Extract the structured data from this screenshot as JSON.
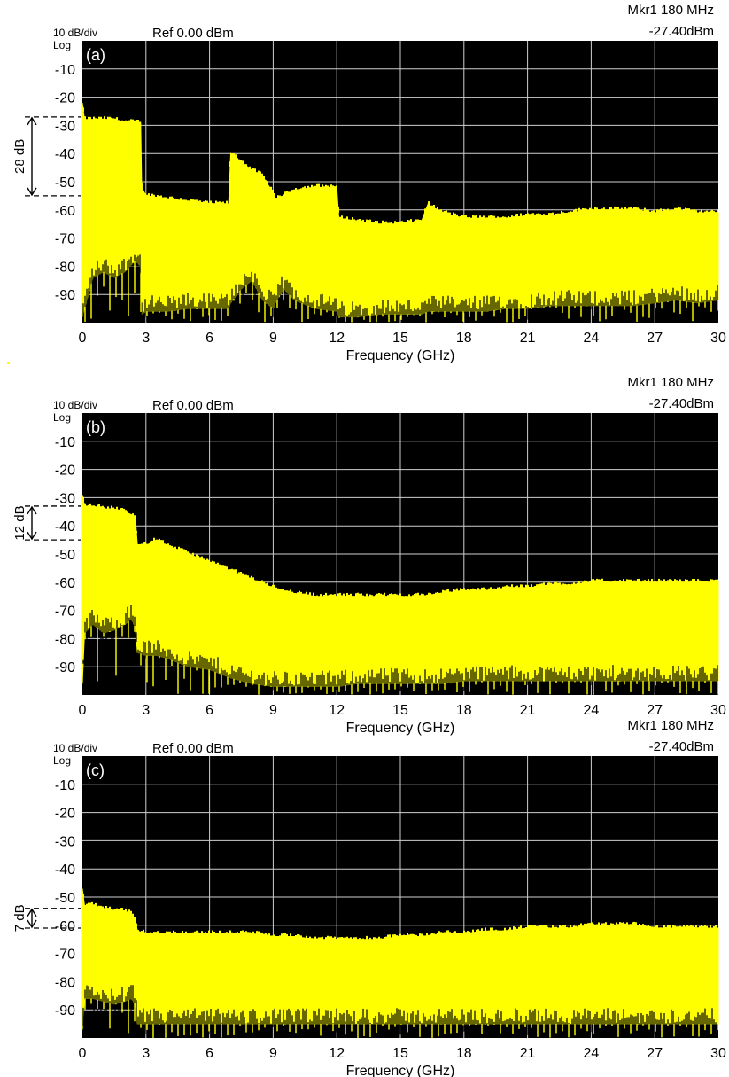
{
  "chart_data": [
    {
      "type": "area",
      "panel_label": "(a)",
      "scale_label": "10 dB/div",
      "log_label": "Log",
      "ref_label": "Ref 0.00 dBm",
      "marker_label": "Mkr1 180 MHz",
      "marker_value": "-27.40dBm",
      "xlabel": "Frequency (GHz)",
      "ylabel": "",
      "xlim": [
        0,
        30
      ],
      "ylim": [
        -100,
        0
      ],
      "x_ticks": [
        "0",
        "3",
        "6",
        "9",
        "12",
        "15",
        "18",
        "21",
        "24",
        "27",
        "30"
      ],
      "y_ticks": [
        "-10",
        "-20",
        "-30",
        "-40",
        "-50",
        "-60",
        "-70",
        "-80",
        "-90"
      ],
      "grid": true,
      "bracket": {
        "label": "28 dB",
        "top": -27,
        "bottom": -55
      },
      "series": [
        {
          "x": [
            0,
            0.1,
            0.5,
            1,
            1.5,
            2,
            2.5,
            2.75,
            2.8,
            3,
            4,
            5,
            6,
            6.9,
            7.0,
            7.5,
            8,
            8.5,
            9,
            9.1,
            9.5,
            10,
            11,
            12,
            12.1,
            13,
            14,
            15,
            16,
            16.3,
            16.5,
            17,
            18,
            19,
            20,
            21,
            22,
            23,
            24,
            25,
            26,
            27,
            28,
            29,
            30
          ],
          "upper": [
            -22,
            -28,
            -28,
            -28,
            -28,
            -29,
            -29,
            -29,
            -52,
            -55,
            -56,
            -57,
            -58,
            -58,
            -40,
            -43,
            -46,
            -48,
            -54,
            -56,
            -55,
            -53,
            -52,
            -52,
            -63,
            -64,
            -65,
            -65,
            -64,
            -58,
            -59,
            -61,
            -63,
            -63,
            -63,
            -62,
            -62,
            -61,
            -60,
            -60,
            -60,
            -61,
            -60,
            -61,
            -61
          ],
          "lower": [
            -98,
            -95,
            -84,
            -82,
            -84,
            -82,
            -78,
            -80,
            -97,
            -96,
            -96,
            -95,
            -95,
            -95,
            -93,
            -88,
            -85,
            -92,
            -95,
            -93,
            -88,
            -92,
            -95,
            -96,
            -98,
            -98,
            -97,
            -97,
            -97,
            -96,
            -96,
            -96,
            -96,
            -96,
            -95,
            -95,
            -94,
            -94,
            -94,
            -94,
            -94,
            -93,
            -92,
            -93,
            -92
          ]
        }
      ]
    },
    {
      "type": "area",
      "panel_label": "(b)",
      "scale_label": "10 dB/div",
      "log_label": "Log",
      "ref_label": "Ref 0.00 dBm",
      "marker_label": "Mkr1 180 MHz",
      "marker_value": "-27.40dBm",
      "xlabel": "Frequency (GHz)",
      "ylabel": "",
      "xlim": [
        0,
        30
      ],
      "ylim": [
        -100,
        0
      ],
      "x_ticks": [
        "0",
        "3",
        "6",
        "9",
        "12",
        "15",
        "18",
        "21",
        "24",
        "27",
        "30"
      ],
      "y_ticks": [
        "-10",
        "-20",
        "-30",
        "-40",
        "-50",
        "-60",
        "-70",
        "-80",
        "-90"
      ],
      "grid": true,
      "bracket": {
        "label": "12 dB",
        "top": -33,
        "bottom": -45
      },
      "series": [
        {
          "x": [
            0,
            0.1,
            0.5,
            1,
            1.5,
            2,
            2.3,
            2.5,
            2.6,
            3,
            3.5,
            4,
            5,
            6,
            7,
            8,
            9,
            10,
            11,
            12,
            13,
            14,
            15,
            16,
            17,
            18,
            19,
            20,
            21,
            22,
            23,
            24,
            25,
            26,
            27,
            28,
            29,
            30
          ],
          "upper": [
            -29,
            -33,
            -33,
            -34,
            -34,
            -35,
            -36,
            -37,
            -47,
            -47,
            -45,
            -47,
            -50,
            -53,
            -56,
            -59,
            -62,
            -64,
            -65,
            -65,
            -65,
            -65,
            -65,
            -65,
            -64,
            -63,
            -63,
            -62,
            -62,
            -61,
            -61,
            -60,
            -60,
            -60,
            -60,
            -60,
            -60,
            -60
          ],
          "lower": [
            -96,
            -78,
            -75,
            -78,
            -77,
            -75,
            -73,
            -76,
            -85,
            -86,
            -86,
            -87,
            -90,
            -91,
            -94,
            -96,
            -97,
            -97,
            -97,
            -97,
            -96,
            -96,
            -96,
            -96,
            -96,
            -95,
            -95,
            -95,
            -95,
            -95,
            -95,
            -95,
            -95,
            -95,
            -95,
            -95,
            -95,
            -95
          ]
        }
      ]
    },
    {
      "type": "area",
      "panel_label": "(c)",
      "scale_label": "10 dB/div",
      "log_label": "Log",
      "ref_label": "Ref 0.00 dBm",
      "marker_label": "Mkr1 180 MHz",
      "marker_value": "-27.40dBm",
      "xlabel": "Frequency (GHz)",
      "ylabel": "",
      "xlim": [
        0,
        30
      ],
      "ylim": [
        -100,
        0
      ],
      "x_ticks": [
        "0",
        "3",
        "6",
        "9",
        "12",
        "15",
        "18",
        "21",
        "24",
        "27",
        "30"
      ],
      "y_ticks": [
        "-10",
        "-20",
        "-30",
        "-40",
        "-50",
        "-60",
        "-70",
        "-80",
        "-90"
      ],
      "grid": true,
      "bracket": {
        "label": "7 dB",
        "top": -54,
        "bottom": -61
      },
      "series": [
        {
          "x": [
            0,
            0.1,
            0.5,
            1,
            1.5,
            2,
            2.3,
            2.5,
            2.6,
            3,
            4,
            5,
            6,
            7,
            8,
            9,
            10,
            11,
            12,
            13,
            14,
            15,
            16,
            17,
            18,
            19,
            20,
            21,
            22,
            23,
            24,
            25,
            26,
            27,
            28,
            29,
            30
          ],
          "upper": [
            -47,
            -53,
            -53,
            -54,
            -55,
            -55,
            -56,
            -58,
            -62,
            -63,
            -63,
            -63,
            -63,
            -63,
            -63,
            -64,
            -64,
            -65,
            -65,
            -65,
            -65,
            -64,
            -64,
            -63,
            -63,
            -62,
            -62,
            -61,
            -61,
            -61,
            -60,
            -60,
            -60,
            -61,
            -61,
            -61,
            -61
          ],
          "lower": [
            -97,
            -86,
            -86,
            -87,
            -88,
            -87,
            -86,
            -88,
            -95,
            -95,
            -95,
            -95,
            -95,
            -95,
            -95,
            -95,
            -95,
            -95,
            -95,
            -95,
            -95,
            -95,
            -95,
            -95,
            -95,
            -95,
            -95,
            -95,
            -95,
            -95,
            -95,
            -95,
            -95,
            -95,
            -95,
            -95,
            -95
          ]
        }
      ]
    }
  ]
}
